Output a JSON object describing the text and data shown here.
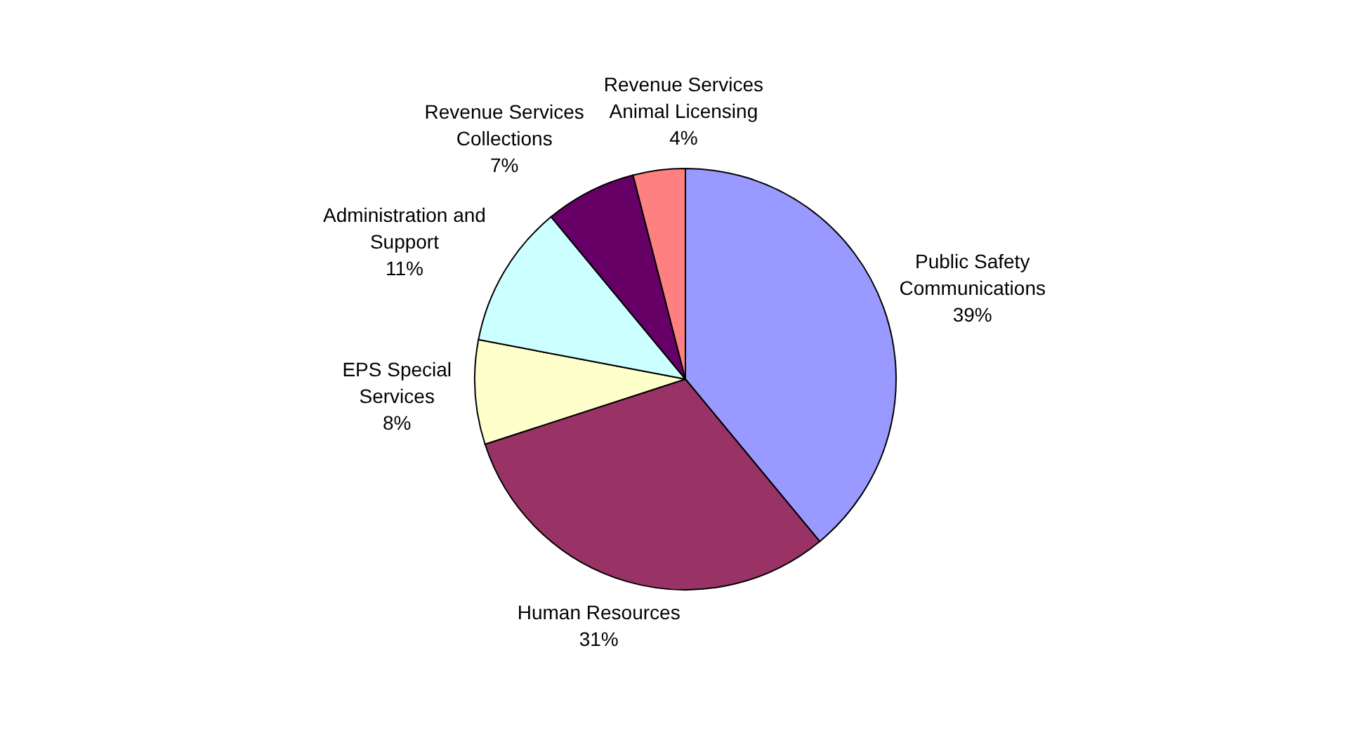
{
  "chart_data": {
    "type": "pie",
    "categories": [
      "Public Safety Communications",
      "Human Resources",
      "EPS Special Services",
      "Administration and Support",
      "Revenue Services Collections",
      "Revenue Services Animal Licensing"
    ],
    "values": [
      39,
      31,
      8,
      11,
      7,
      4
    ],
    "value_labels": [
      "39%",
      "31%",
      "8%",
      "11%",
      "7%",
      "4%"
    ],
    "colors": [
      "#9999ff",
      "#993366",
      "#ffffcc",
      "#ccffff",
      "#660066",
      "#ff8080"
    ]
  }
}
